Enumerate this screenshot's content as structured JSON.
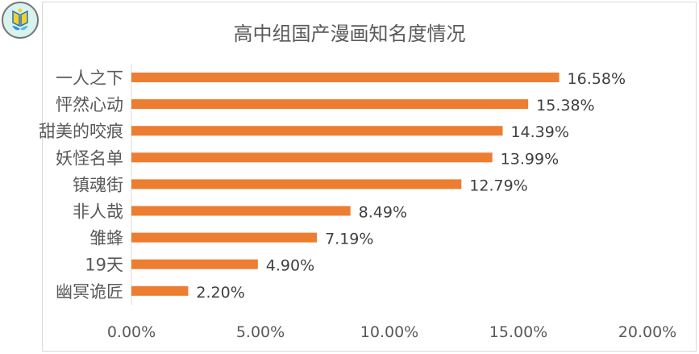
{
  "chart_data": {
    "type": "bar",
    "orientation": "horizontal",
    "title": "高中组国产漫画知名度情况",
    "categories": [
      "一人之下",
      "怦然心动",
      "甜美的咬痕",
      "妖怪名单",
      "镇魂街",
      "非人哉",
      "雏蜂",
      "19天",
      "幽冥诡匠"
    ],
    "values": [
      16.58,
      15.38,
      14.39,
      13.99,
      12.79,
      8.49,
      7.19,
      4.9,
      2.2
    ],
    "data_labels": [
      "16.58%",
      "15.38%",
      "14.39%",
      "13.99%",
      "12.79%",
      "8.49%",
      "7.19%",
      "4.90%",
      "2.20%"
    ],
    "xticks": [
      "0.00%",
      "5.00%",
      "10.00%",
      "15.00%",
      "20.00%"
    ],
    "xlim": [
      0,
      20
    ],
    "xlabel": "",
    "ylabel": "",
    "grid": false,
    "bar_color": "#ED7D31"
  }
}
